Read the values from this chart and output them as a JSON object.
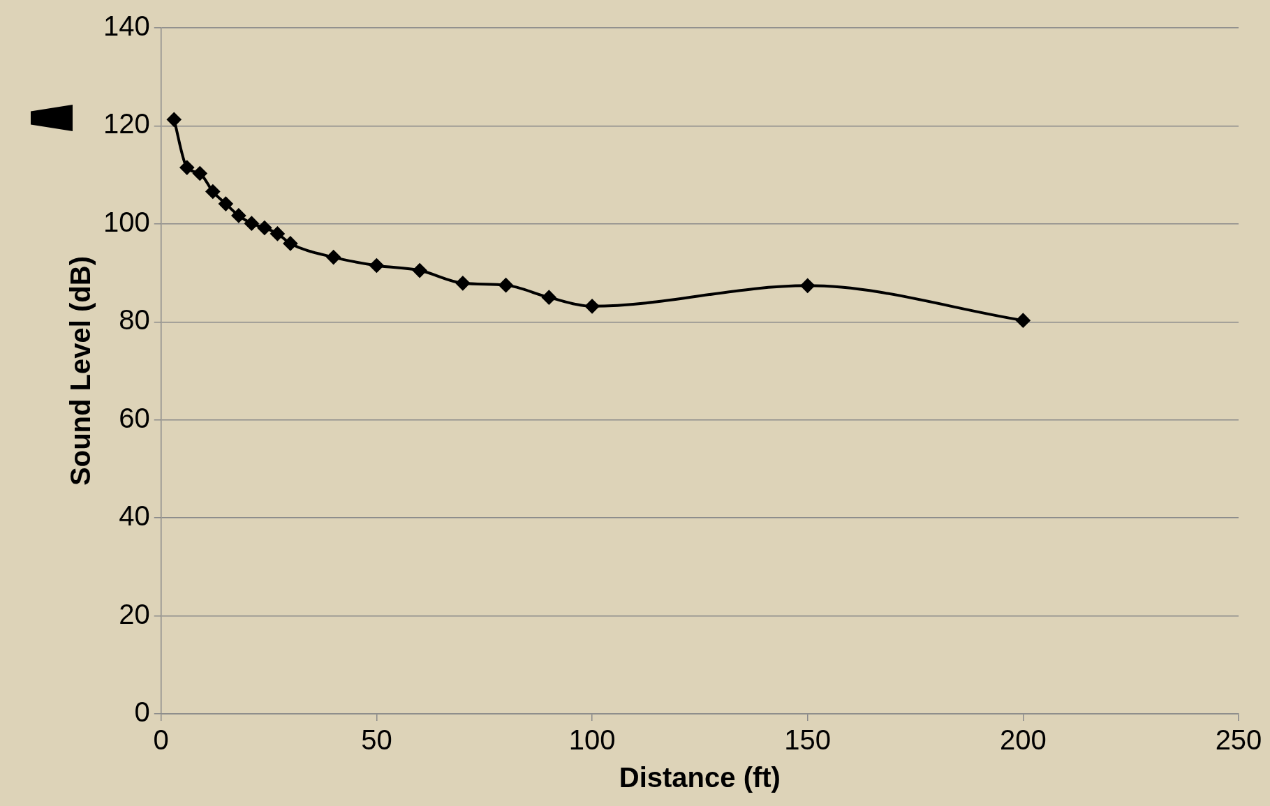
{
  "chart_data": {
    "type": "line",
    "xlabel": "Distance (ft)",
    "ylabel": "Sound Level (dB)",
    "xlim": [
      0,
      250
    ],
    "xticks": [
      0,
      50,
      100,
      150,
      200,
      250
    ],
    "ylim": [
      0,
      140
    ],
    "yticks": [
      0,
      20,
      40,
      60,
      80,
      100,
      120,
      140
    ],
    "grid": "y",
    "legend": false,
    "marker": "diamond",
    "line_style": "solid",
    "series": [
      {
        "color": "#000000",
        "x": [
          3,
          6,
          9,
          12,
          15,
          18,
          21,
          24,
          27,
          30,
          40,
          50,
          60,
          70,
          80,
          90,
          100,
          150,
          200
        ],
        "values": [
          121.3,
          111.5,
          110.3,
          106.6,
          104.1,
          101.7,
          100.1,
          99.2,
          98,
          96,
          93.2,
          91.5,
          90.5,
          87.9,
          87.5,
          85,
          83.2,
          87.4,
          80.3
        ]
      }
    ]
  }
}
